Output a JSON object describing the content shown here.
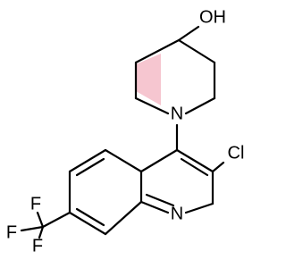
{
  "atoms": {
    "hydroxyl": "OH",
    "piperidine_n": "N",
    "chloro": "Cl",
    "quinoline_n": "N",
    "fluorines": [
      "F",
      "F",
      "F"
    ]
  }
}
